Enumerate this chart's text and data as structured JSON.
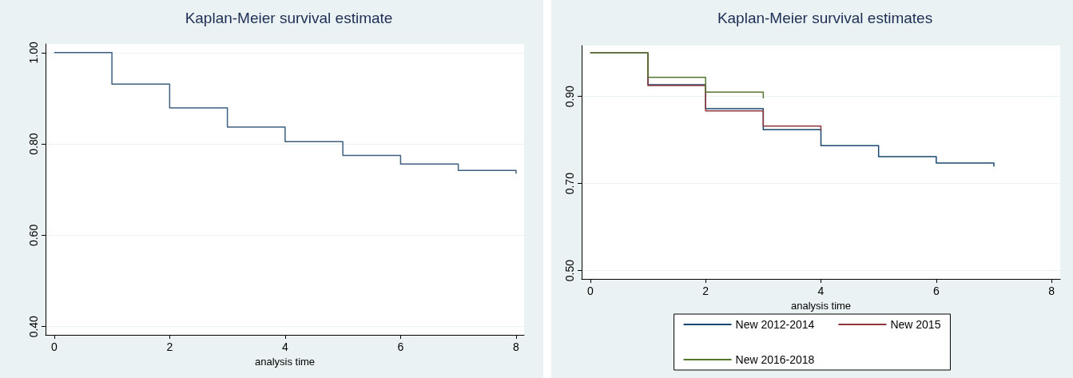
{
  "chart_data": [
    {
      "type": "step",
      "title": "Kaplan-Meier survival estimate",
      "xlabel": "analysis time",
      "x": [
        0,
        1,
        2,
        3,
        4,
        5,
        6,
        7,
        8
      ],
      "series": [
        {
          "color": "#3e5f80",
          "values": [
            1.0,
            0.931,
            0.879,
            0.837,
            0.805,
            0.775,
            0.756,
            0.742,
            0.735
          ]
        }
      ],
      "xlim": [
        -0.15,
        8.14
      ],
      "xticks": [
        0,
        2,
        4,
        6,
        8
      ],
      "ylim": [
        0.382,
        1.019
      ],
      "yticks": [
        {
          "value": 0.4,
          "label": "0.40"
        },
        {
          "value": 0.6,
          "label": "0.60"
        },
        {
          "value": 0.8,
          "label": "0.80"
        },
        {
          "value": 1.0,
          "label": "1.00"
        }
      ],
      "grid": "y",
      "legend": false
    },
    {
      "type": "step",
      "title": "Kaplan-Meier survival estimates",
      "xlabel": "analysis time",
      "series": [
        {
          "name": "New 2012-2014",
          "color": "#1a476f",
          "x": [
            0,
            1,
            2,
            3,
            4,
            5,
            6,
            7
          ],
          "values": [
            1.0,
            0.927,
            0.872,
            0.824,
            0.787,
            0.762,
            0.747,
            0.739
          ]
        },
        {
          "name": "New 2015",
          "color": "#90353b",
          "x": [
            0,
            1,
            2,
            3,
            4
          ],
          "values": [
            1.0,
            0.925,
            0.867,
            0.832,
            0.822
          ]
        },
        {
          "name": "New 2016-2018",
          "color": "#55752f",
          "x": [
            0,
            1,
            2,
            3
          ],
          "values": [
            1.0,
            0.944,
            0.91,
            0.896
          ]
        }
      ],
      "xlim": [
        -0.15,
        8.15
      ],
      "xticks": [
        0,
        2,
        4,
        6,
        8
      ],
      "ylim": [
        0.481,
        1.017
      ],
      "yticks": [
        {
          "value": 0.5,
          "label": "0.50"
        },
        {
          "value": 0.7,
          "label": "0.70"
        },
        {
          "value": 0.9,
          "label": "0.90"
        }
      ],
      "grid": "y",
      "legend": "bottom"
    }
  ]
}
